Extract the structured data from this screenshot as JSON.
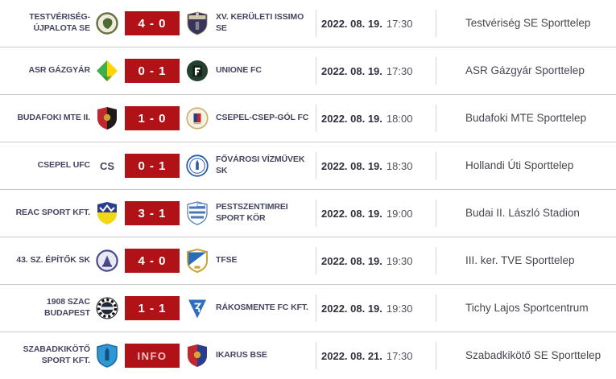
{
  "theme": {
    "bg": "#ffffff",
    "score_bg": "#b11218",
    "score_text": "#ffffff",
    "info_text": "#f0c3c5",
    "team_text": "#45455f",
    "date_text": "#30303c",
    "time_text": "#51515c",
    "venue_text": "#46464f",
    "row_border": "#c9c9c9",
    "col_border": "#d4d4d4"
  },
  "matches": [
    {
      "home": "TESTVÉRISÉG-ÚJPALOTA SE",
      "away": "XV. KERÜLETI ISSIMO SE",
      "score": "4 - 0",
      "is_info": false,
      "date": "2022. 08. 19.",
      "time": "17:30",
      "venue": "Testvériség SE Sporttelep",
      "home_logo": {
        "name": "testveriseg-ujpalota-logo",
        "shape": "circle-blob",
        "colors": [
          "#66713f",
          "#f0ecdc",
          "#4e6b33"
        ]
      },
      "away_logo": {
        "name": "xv-keruleti-issimo-logo",
        "shape": "crest",
        "colors": [
          "#34345c",
          "#cfc6ab",
          "#9a8650"
        ]
      }
    },
    {
      "home": "ASR GÁZGYÁR",
      "away": "UNIONE FC",
      "score": "0 - 1",
      "is_info": false,
      "date": "2022. 08. 19.",
      "time": "17:30",
      "venue": "ASR Gázgyár Sporttelep",
      "home_logo": {
        "name": "asr-gazgyar-logo",
        "shape": "diamond",
        "colors": [
          "#3faf49",
          "#ffd400",
          "#2e8d3a"
        ]
      },
      "away_logo": {
        "name": "unione-fc-logo",
        "shape": "circle-square",
        "colors": [
          "#24402e",
          "#16231a",
          "#ffffff"
        ]
      }
    },
    {
      "home": "BUDAFOKI MTE II.",
      "away": "CSEPEL-CSEP-GÓL FC",
      "score": "1 - 0",
      "is_info": false,
      "date": "2022. 08. 19.",
      "time": "18:00",
      "venue": "Budafoki MTE Sporttelep",
      "home_logo": {
        "name": "budafoki-mte-logo",
        "shape": "shield-split",
        "colors": [
          "#c1272d",
          "#1f1b1b",
          "#c9a433"
        ]
      },
      "away_logo": {
        "name": "csepel-csep-gol-logo",
        "shape": "circle-crest",
        "colors": [
          "#c9ae6e",
          "#2b3c8f",
          "#c1272d"
        ]
      }
    },
    {
      "home": "CSEPEL UFC",
      "away": "FŐVÁROSI VÍZMŰVEK SK",
      "score": "0 - 1",
      "is_info": false,
      "date": "2022. 08. 19.",
      "time": "18:30",
      "venue": "Hollandi Úti Sporttelep",
      "home_logo": {
        "name": "csepel-ufc-logo",
        "shape": "text",
        "label": "CS",
        "colors": [
          "#3e3e5c"
        ]
      },
      "away_logo": {
        "name": "fovarosi-vizmuvek-logo",
        "shape": "circle-ring",
        "colors": [
          "#2a5da8",
          "#ffffff",
          "#3e6fb0"
        ]
      }
    },
    {
      "home": "REAC SPORT KFT.",
      "away": "PESTSZENTIMREI SPORT KÖR",
      "score": "3 - 1",
      "is_info": false,
      "date": "2022. 08. 19.",
      "time": "19:00",
      "venue": "Budai II. László Stadion",
      "home_logo": {
        "name": "reac-logo",
        "shape": "shield-half",
        "colors": [
          "#2b3c8f",
          "#f2d713",
          "#ffffff"
        ]
      },
      "away_logo": {
        "name": "pestszentimrei-logo",
        "shape": "shield-stripes",
        "colors": [
          "#4a78b8",
          "#ffffff",
          "#27427a"
        ]
      }
    },
    {
      "home": "43. SZ. ÉPÍTŐK SK",
      "away": "TFSE",
      "score": "4 - 0",
      "is_info": false,
      "date": "2022. 08. 19.",
      "time": "19:30",
      "venue": "III. ker. TVE Sporttelep",
      "home_logo": {
        "name": "epitok-sk-logo",
        "shape": "circle-glyph",
        "colors": [
          "#4a4a8c",
          "#e9e9f2",
          "#3b3b78"
        ]
      },
      "away_logo": {
        "name": "tfse-logo",
        "shape": "shield-diag",
        "colors": [
          "#2b6cb8",
          "#c9a433",
          "#ffffff"
        ]
      }
    },
    {
      "home": "1908 SZAC BUDAPEST",
      "away": "RÁKOSMENTE FC KFT.",
      "score": "1 - 1",
      "is_info": false,
      "date": "2022. 08. 19.",
      "time": "19:30",
      "venue": "Tichy Lajos Sportcentrum",
      "home_logo": {
        "name": "szac-budapest-logo",
        "shape": "circle-checker",
        "colors": [
          "#20283e",
          "#111111",
          "#ffffff"
        ]
      },
      "away_logo": {
        "name": "rakosmente-fc-logo",
        "shape": "pennant",
        "colors": [
          "#2f6fc0",
          "#ffffff",
          "#8aa8cc"
        ]
      }
    },
    {
      "home": "SZABADKIKÖTŐ SPORT KFT.",
      "away": "IKARUS BSE",
      "score": "INFO",
      "is_info": true,
      "date": "2022. 08. 21.",
      "time": "17:30",
      "venue": "Szabadkikötő SE Sporttelep",
      "home_logo": {
        "name": "szabadkikoto-logo",
        "shape": "shield-solid",
        "colors": [
          "#2f97d4",
          "#1c6ea6",
          "#11507e"
        ]
      },
      "away_logo": {
        "name": "ikarus-bse-logo",
        "shape": "shield-split",
        "colors": [
          "#c1272d",
          "#2b3c8f",
          "#d8a62e"
        ]
      }
    }
  ]
}
